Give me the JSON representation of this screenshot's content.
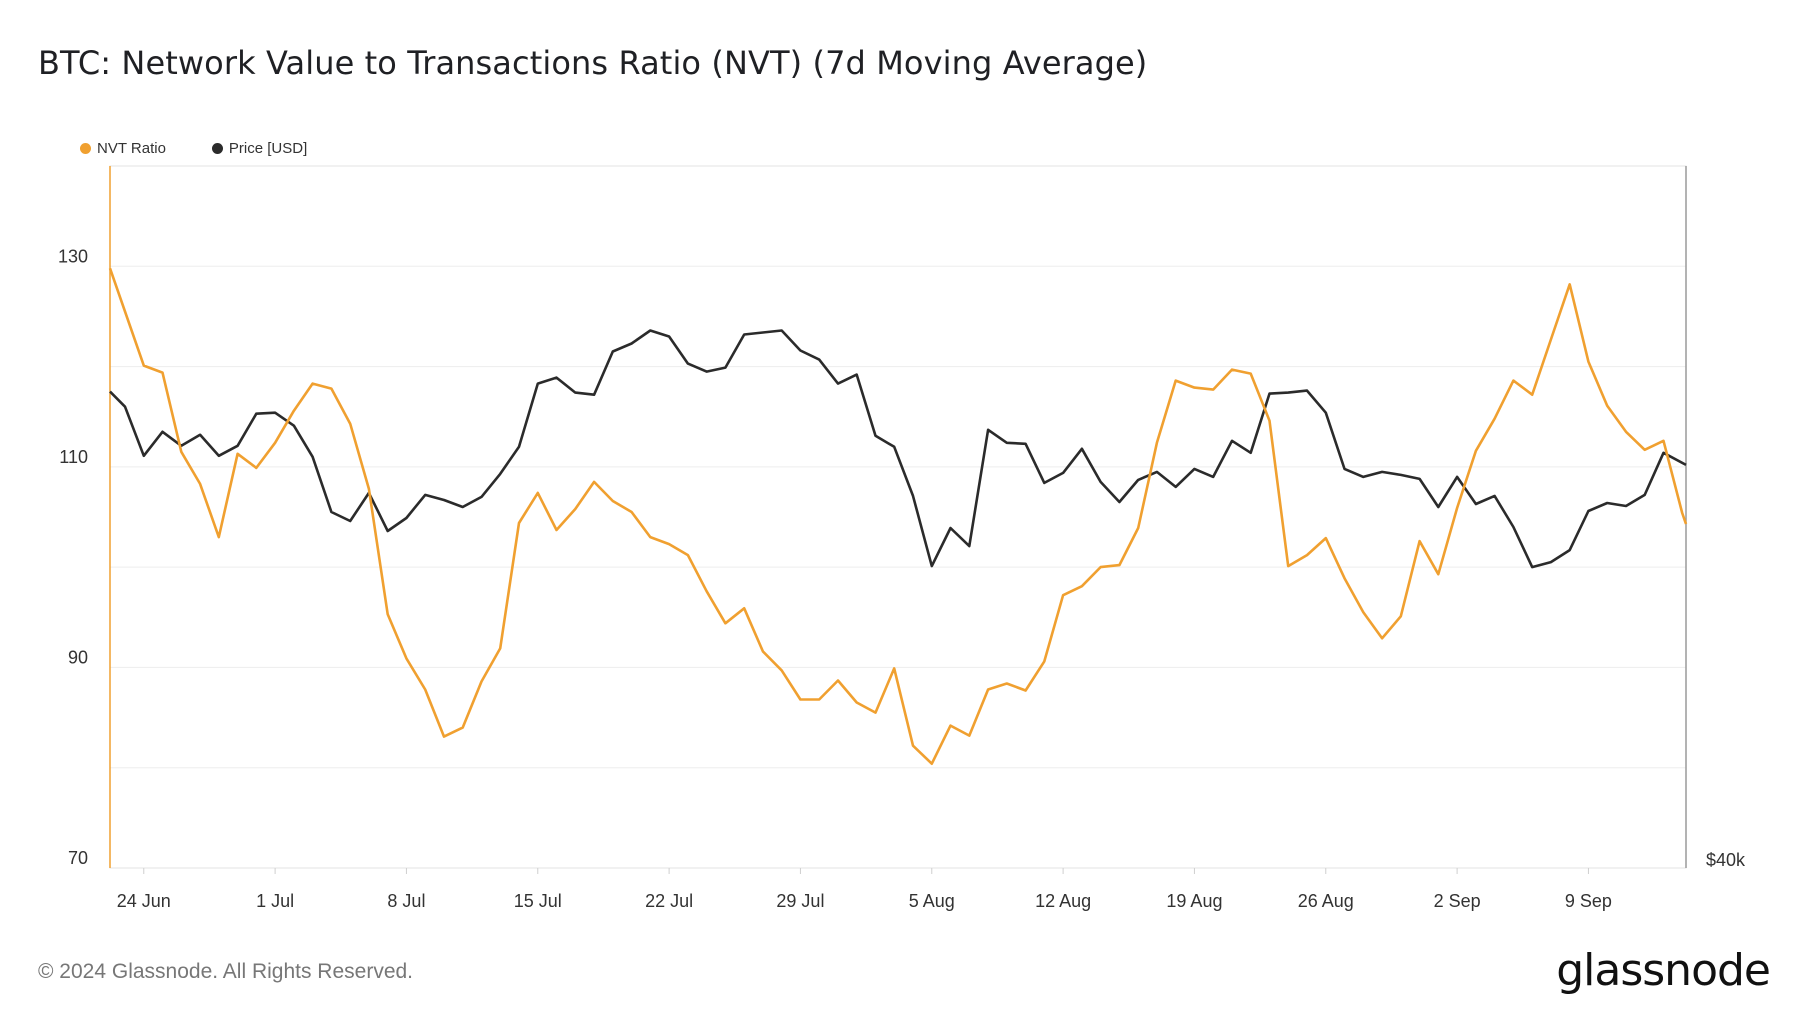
{
  "title": "BTC: Network Value to Transactions Ratio (NVT) (7d Moving Average)",
  "copyright": "© 2024 Glassnode. All Rights Reserved.",
  "brand": "glassnode",
  "colors": {
    "nvt": "#f0a030",
    "price": "#2b2b2b",
    "grid": "#ececec",
    "axis": "#cccccc"
  },
  "chart_data": {
    "type": "line",
    "title": "BTC: Network Value to Transactions Ratio (NVT) (7d Moving Average)",
    "legend": [
      "NVT Ratio",
      "Price [USD]"
    ],
    "legend_position": "top-left",
    "xlabel": "",
    "ylabel": "",
    "ylim": [
      70,
      140
    ],
    "y_ticks": [
      70,
      90,
      110,
      130
    ],
    "right_axis_label": "$40k",
    "x_tick_labels": [
      "24 Jun",
      "1 Jul",
      "8 Jul",
      "15 Jul",
      "22 Jul",
      "29 Jul",
      "5 Aug",
      "12 Aug",
      "19 Aug",
      "26 Aug",
      "2 Sep",
      "9 Sep"
    ],
    "x_tick_days": [
      1,
      8,
      15,
      22,
      29,
      36,
      43,
      50,
      57,
      64,
      71,
      78
    ],
    "x_range_days": [
      -0.8,
      83.2
    ],
    "series": [
      {
        "name": "NVT Ratio",
        "color": "#f0a030",
        "x": [
          -0.8,
          1,
          2,
          3,
          4,
          5,
          6,
          7,
          8,
          9,
          10,
          11,
          12,
          13,
          14,
          15,
          16,
          17,
          18,
          19,
          20,
          21,
          22,
          23,
          24,
          25,
          26,
          27,
          28,
          29,
          30,
          31,
          32,
          33,
          34,
          35,
          36,
          37,
          38,
          39,
          40,
          41,
          42,
          43,
          44,
          45,
          46,
          47,
          48,
          49,
          50,
          51,
          52,
          53,
          54,
          55,
          56,
          57,
          58,
          59,
          60,
          61,
          62,
          63,
          64,
          65,
          66,
          67,
          68,
          69,
          70,
          71,
          72,
          73,
          74,
          75,
          76,
          77,
          78,
          79,
          80,
          81,
          82,
          83,
          83.2
        ],
        "values": [
          129.8,
          120.1,
          119.4,
          111.5,
          108.3,
          103.0,
          111.3,
          109.9,
          112.4,
          115.6,
          118.3,
          117.8,
          114.3,
          107.8,
          95.3,
          90.9,
          87.8,
          83.1,
          84.0,
          88.6,
          91.9,
          104.4,
          107.4,
          103.7,
          105.8,
          108.5,
          106.6,
          105.5,
          103.0,
          102.3,
          101.2,
          97.6,
          94.4,
          95.9,
          91.6,
          89.7,
          86.8,
          86.8,
          88.7,
          86.5,
          85.5,
          89.9,
          82.2,
          80.4,
          84.2,
          83.2,
          87.8,
          88.4,
          87.7,
          90.6,
          97.2,
          98.1,
          100.0,
          100.2,
          103.9,
          112.4,
          118.6,
          117.9,
          117.7,
          119.7,
          119.3,
          114.6,
          100.1,
          101.2,
          102.9,
          98.9,
          95.5,
          92.9,
          95.1,
          102.6,
          99.3,
          105.9,
          111.6,
          114.8,
          118.6,
          117.2,
          122.7,
          128.2,
          120.5,
          116.1,
          113.5,
          111.7,
          112.6,
          105.4,
          104.3
        ]
      },
      {
        "name": "Price [USD]",
        "color": "#2b2b2b",
        "x": [
          -0.8,
          0,
          1,
          2,
          3,
          4,
          5,
          6,
          7,
          8,
          9,
          10,
          11,
          12,
          13,
          14,
          15,
          16,
          17,
          18,
          19,
          20,
          21,
          22,
          23,
          24,
          25,
          26,
          27,
          28,
          29,
          30,
          31,
          32,
          33,
          34,
          35,
          36,
          37,
          38,
          39,
          40,
          41,
          42,
          43,
          44,
          45,
          46,
          47,
          48,
          49,
          50,
          51,
          52,
          53,
          54,
          55,
          56,
          57,
          58,
          59,
          60,
          61,
          62,
          63,
          64,
          65,
          66,
          67,
          68,
          69,
          70,
          71,
          72,
          73,
          74,
          75,
          76,
          77,
          78,
          79,
          80,
          81,
          82,
          83.2
        ],
        "values": [
          117.5,
          116.0,
          111.1,
          113.5,
          112.1,
          113.2,
          111.1,
          112.1,
          115.3,
          115.4,
          114.1,
          111.0,
          105.5,
          104.6,
          107.4,
          103.6,
          104.9,
          107.2,
          106.7,
          106.0,
          107.0,
          109.3,
          112.0,
          118.3,
          118.9,
          117.4,
          117.2,
          121.5,
          122.3,
          123.6,
          123.0,
          120.3,
          119.5,
          119.9,
          123.2,
          123.4,
          123.6,
          121.6,
          120.7,
          118.3,
          119.2,
          113.1,
          112.0,
          107.1,
          100.1,
          103.9,
          102.1,
          113.7,
          112.4,
          112.3,
          108.4,
          109.4,
          111.8,
          108.5,
          106.5,
          108.7,
          109.5,
          108.0,
          109.8,
          109.0,
          112.6,
          111.4,
          117.3,
          117.4,
          117.6,
          115.4,
          109.8,
          109.0,
          109.5,
          109.2,
          108.8,
          106.0,
          109.0,
          106.3,
          107.1,
          104.0,
          100.0,
          100.5,
          101.7,
          105.6,
          106.4,
          106.1,
          107.2,
          111.4,
          110.2
        ]
      }
    ]
  }
}
